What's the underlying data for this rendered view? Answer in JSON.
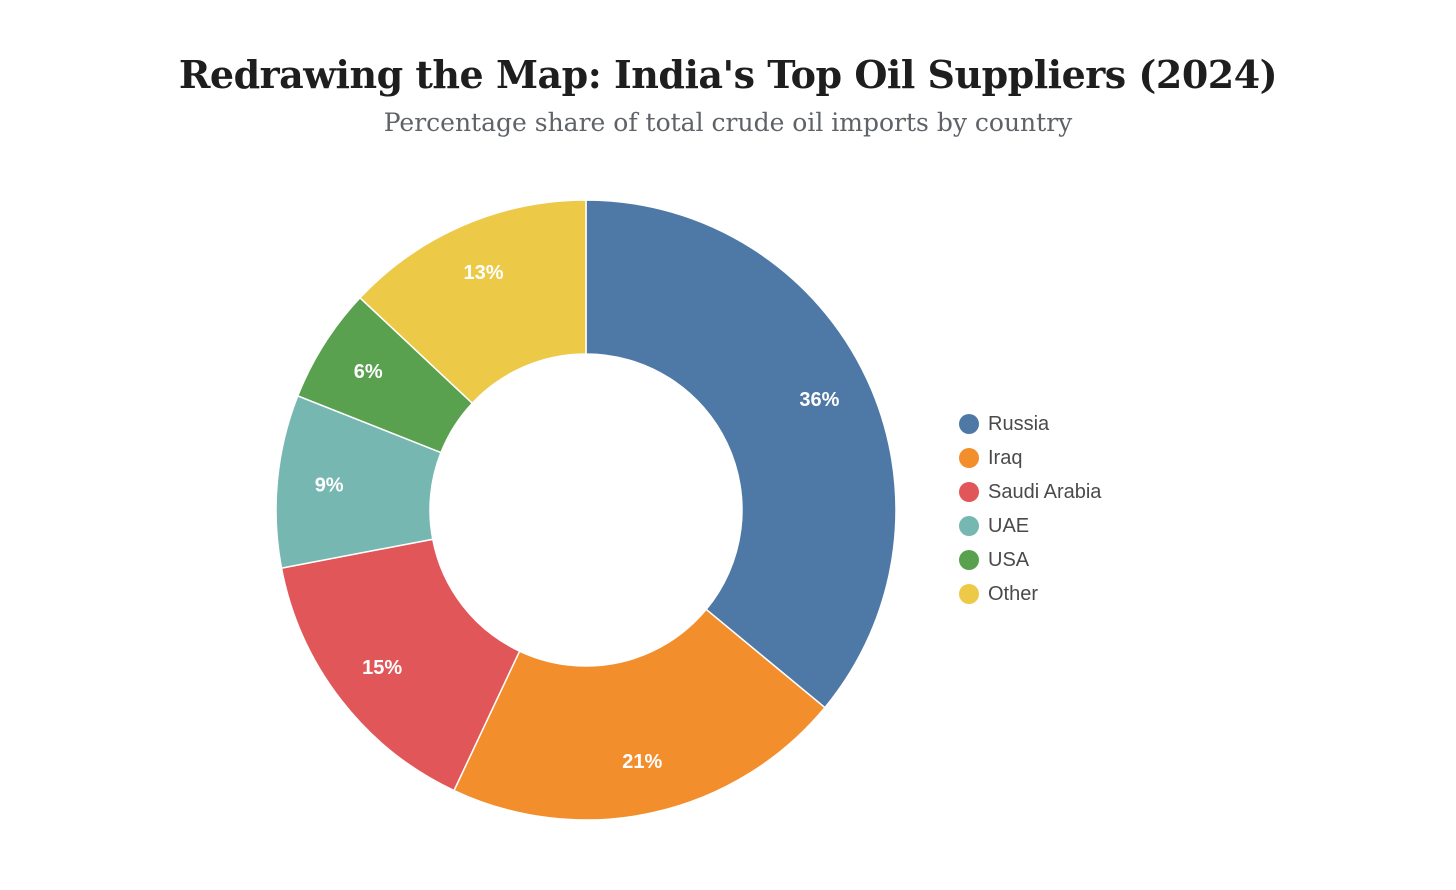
{
  "chart_data": {
    "type": "pie",
    "variant": "donut",
    "title": "Redrawing the Map: India's Top Oil Suppliers (2024)",
    "subtitle": "Percentage share of total crude oil imports by country",
    "categories": [
      "Russia",
      "Iraq",
      "Saudi Arabia",
      "UAE",
      "USA",
      "Other"
    ],
    "values": [
      36,
      21,
      15,
      9,
      6,
      13
    ],
    "labels": [
      "36%",
      "21%",
      "15%",
      "9%",
      "6%",
      "13%"
    ],
    "colors": [
      "#4e79a7",
      "#f28e2b",
      "#e15759",
      "#76b7b2",
      "#59a14f",
      "#edc948"
    ],
    "legend_position": "right"
  }
}
